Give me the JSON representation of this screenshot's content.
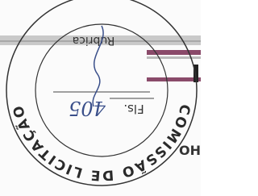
{
  "stamp": {
    "label_top": "Rubrica",
    "label_sheet": "Fls.",
    "sheet_number": "405",
    "arc_text": "COMISSÃO DE LICITAÇÃO"
  },
  "fragment": "OH"
}
